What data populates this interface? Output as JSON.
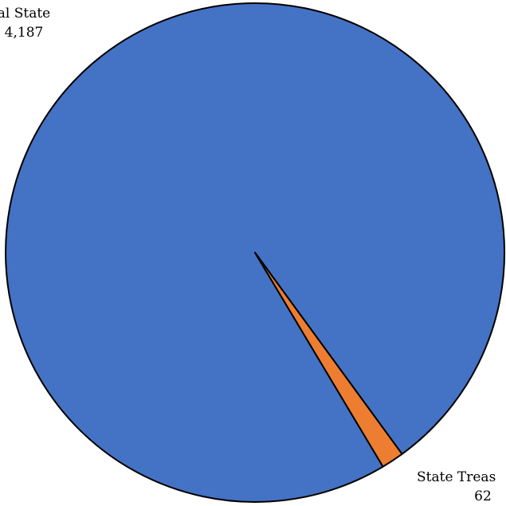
{
  "chart_data": {
    "type": "pie",
    "title": "",
    "slices": [
      {
        "label": "al State",
        "value": "4,187",
        "amount": 4187,
        "color": "#4472C4"
      },
      {
        "label": "State Treas",
        "value": "62",
        "amount": 62,
        "color": "#ED7D31"
      }
    ],
    "legend": "none"
  }
}
